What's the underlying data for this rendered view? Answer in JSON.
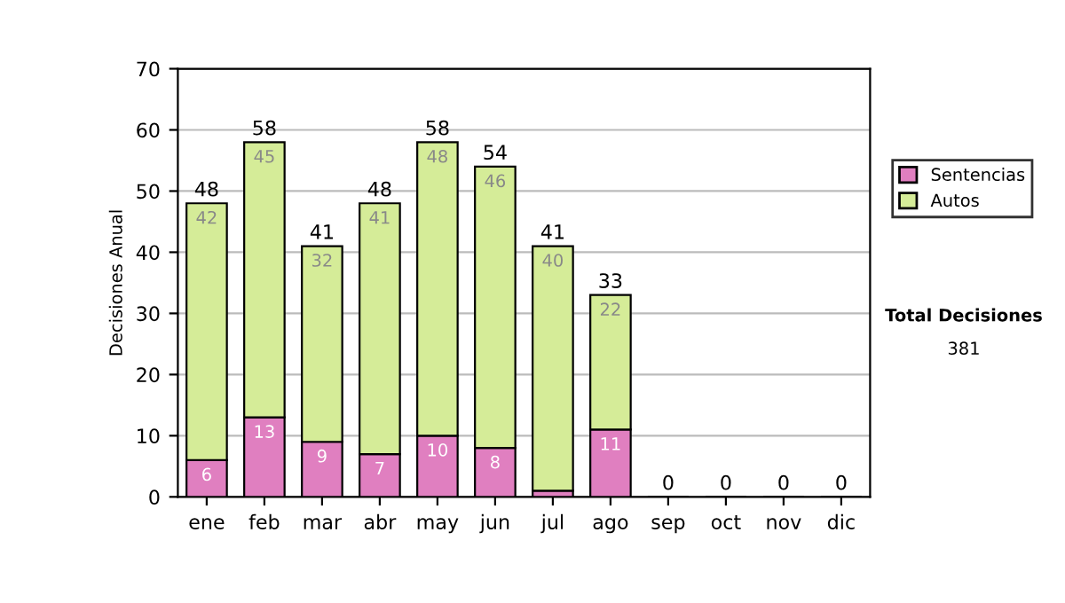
{
  "chart_data": {
    "type": "bar",
    "stacked": true,
    "ylabel": "Decisiones Anual",
    "categories": [
      "ene",
      "feb",
      "mar",
      "abr",
      "may",
      "jun",
      "jul",
      "ago",
      "sep",
      "oct",
      "nov",
      "dic"
    ],
    "series": [
      {
        "name": "Sentencias",
        "color": "#e07fc0",
        "values": [
          6,
          13,
          9,
          7,
          10,
          8,
          1,
          11,
          0,
          0,
          0,
          0
        ],
        "value_labels": [
          "6",
          "13",
          "9",
          "7",
          "10",
          "8",
          null,
          "11",
          null,
          null,
          null,
          null
        ]
      },
      {
        "name": "Autos",
        "color": "#d5ec98",
        "values": [
          42,
          45,
          32,
          41,
          48,
          46,
          40,
          22,
          0,
          0,
          0,
          0
        ],
        "value_labels": [
          "42",
          "45",
          "32",
          "41",
          "48",
          "46",
          "40",
          "22",
          null,
          null,
          null,
          null
        ]
      }
    ],
    "totals": [
      "48",
      "58",
      "41",
      "48",
      "58",
      "54",
      "41",
      "33",
      "0",
      "0",
      "0",
      "0"
    ],
    "ylim": [
      0,
      70
    ],
    "yticks": [
      0,
      10,
      20,
      30,
      40,
      50,
      60,
      70
    ],
    "grid": "y",
    "legend": "right",
    "annotations": [
      "Total Decisiones",
      "381"
    ]
  }
}
